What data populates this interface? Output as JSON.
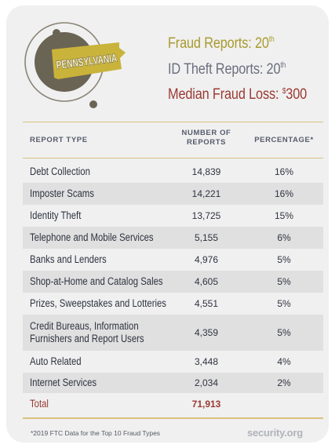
{
  "header": {
    "state_name": "PENNSYLVANIA",
    "fraud_reports_label": "Fraud Reports: 20",
    "fraud_reports_suffix": "th",
    "id_theft_label": "ID Theft Reports: 20",
    "id_theft_suffix": "th",
    "median_loss_label": "Median Fraud Loss: ",
    "median_loss_currency": "$",
    "median_loss_value": "300"
  },
  "colors": {
    "gold": "#a99a2e",
    "slate": "#6b6f7f",
    "maroon": "#9a3a33",
    "rule": "#d9c27c"
  },
  "table": {
    "headers": {
      "type": "REPORT TYPE",
      "number_line1": "NUMBER OF",
      "number_line2": "REPORTS",
      "percentage": "PERCENTAGE*"
    },
    "rows": [
      {
        "type": "Debt Collection",
        "number": "14,839",
        "percentage": "16%"
      },
      {
        "type": "Imposter Scams",
        "number": "14,221",
        "percentage": "16%"
      },
      {
        "type": "Identity Theft",
        "number": "13,725",
        "percentage": "15%"
      },
      {
        "type": "Telephone and Mobile Services",
        "number": "5,155",
        "percentage": "6%"
      },
      {
        "type": "Banks and Lenders",
        "number": "4,976",
        "percentage": "5%"
      },
      {
        "type": "Shop-at-Home and Catalog Sales",
        "number": "4,605",
        "percentage": "5%"
      },
      {
        "type": "Prizes, Sweepstakes and Lotteries",
        "number": "4,551",
        "percentage": "5%"
      },
      {
        "type_line1": "Credit Bureaus, Information",
        "type_line2": "Furnishers and Report Users",
        "number": "4,359",
        "percentage": "5%"
      },
      {
        "type": "Auto Related",
        "number": "3,448",
        "percentage": "4%"
      },
      {
        "type": "Internet Services",
        "number": "2,034",
        "percentage": "2%"
      }
    ],
    "total": {
      "type": "Total",
      "number": "71,913"
    }
  },
  "footnote": "*2019 FTC Data for the Top 10 Fraud Types",
  "brand": "security.org"
}
